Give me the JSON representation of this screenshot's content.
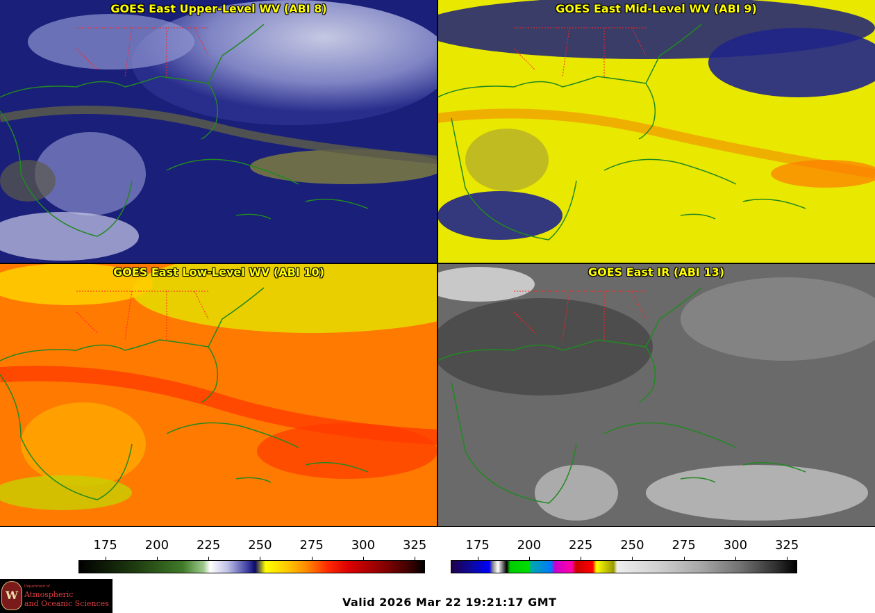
{
  "panels": [
    {
      "title": "GOES East Upper-Level WV (ABI 8)",
      "palette": "wv-upper"
    },
    {
      "title": "GOES East Mid-Level WV (ABI 9)",
      "palette": "wv-mid"
    },
    {
      "title": "GOES East Low-Level WV (ABI 10)",
      "palette": "wv-low"
    },
    {
      "title": "GOES East IR (ABI 13)",
      "palette": "ir"
    }
  ],
  "colorbar_wv": {
    "ticks": [
      "175",
      "200",
      "225",
      "250",
      "275",
      "300",
      "325"
    ],
    "range": [
      162,
      330
    ]
  },
  "colorbar_ir": {
    "ticks": [
      "175",
      "200",
      "225",
      "250",
      "275",
      "300",
      "325"
    ],
    "range": [
      162,
      330
    ]
  },
  "footer": {
    "valid_text": "Valid 2026 Mar 22 19:21:17 GMT"
  },
  "logo": {
    "letter": "W",
    "dept": "Department of",
    "line1": "Atmospheric",
    "line2": "and Oceanic Sciences"
  },
  "colors": {
    "title_text": "#ffff00",
    "coastline": "#228822",
    "state_border": "#ff2222"
  }
}
